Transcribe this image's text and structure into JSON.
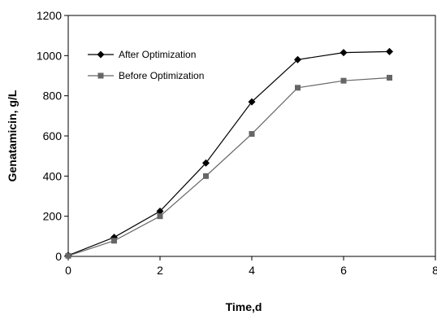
{
  "chart_data": {
    "type": "line",
    "xlabel": "Time,d",
    "ylabel": "Genatamicin, g/L",
    "xlim": [
      0,
      8
    ],
    "ylim": [
      0,
      1200
    ],
    "xticks": [
      "0",
      "2",
      "4",
      "6",
      "8"
    ],
    "yticks": [
      "0",
      "200",
      "400",
      "600",
      "800",
      "1000",
      "1200"
    ],
    "grid": false,
    "legend_position": "top-left",
    "series": [
      {
        "name": "After Optimization",
        "marker": "diamond",
        "color": "#000000",
        "x": [
          0,
          1,
          2,
          3,
          4,
          5,
          6,
          7
        ],
        "y": [
          5,
          95,
          225,
          465,
          770,
          980,
          1015,
          1020
        ]
      },
      {
        "name": "Before Optimization",
        "marker": "square",
        "color": "#666666",
        "x": [
          0,
          1,
          2,
          3,
          4,
          5,
          6,
          7
        ],
        "y": [
          3,
          78,
          200,
          400,
          610,
          840,
          875,
          890
        ]
      }
    ]
  }
}
